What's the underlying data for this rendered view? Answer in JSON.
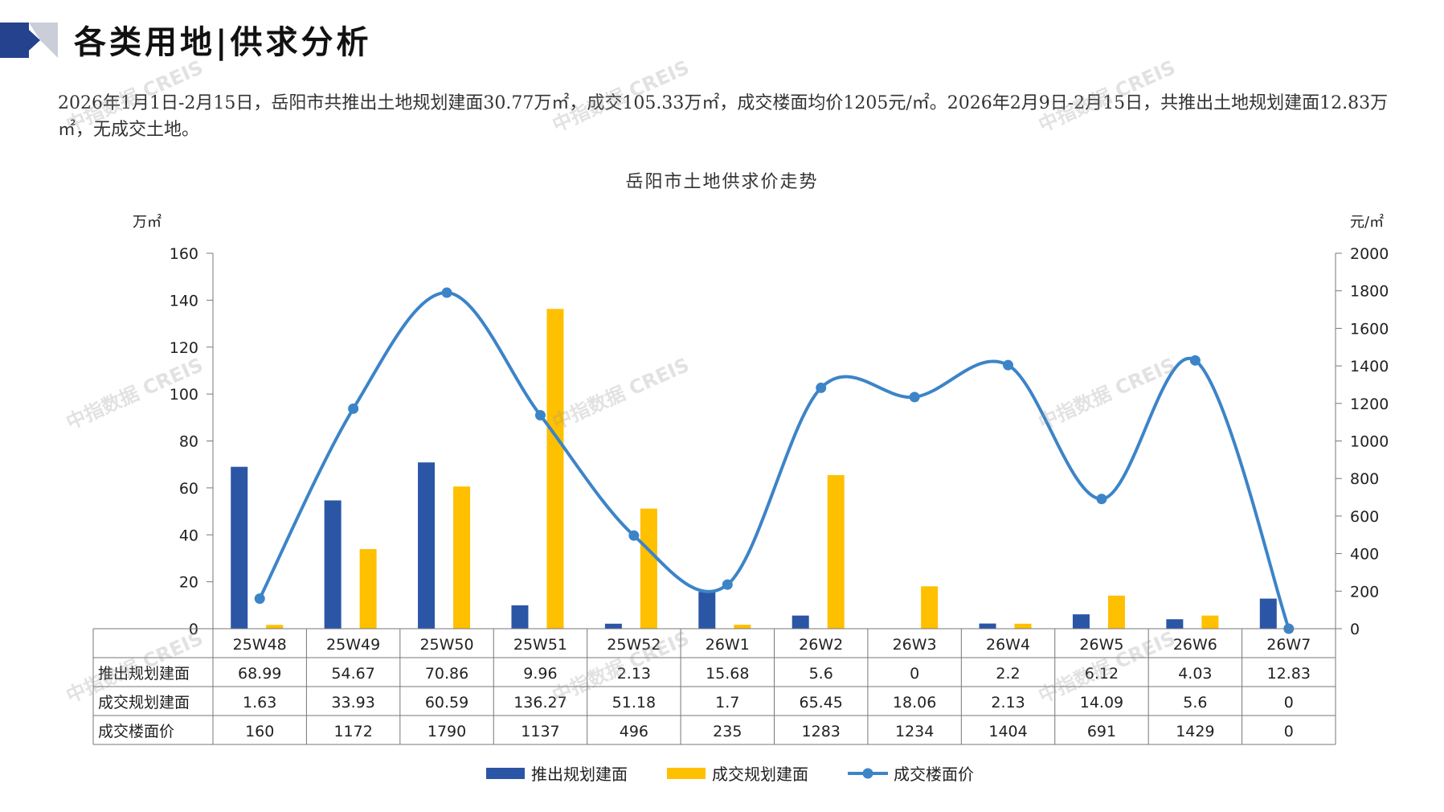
{
  "header": {
    "title": "各类用地|供求分析",
    "summary": "2026年1月1日-2月15日，岳阳市共推出土地规划建面30.77万㎡，成交105.33万㎡，成交楼面均价1205元/㎡。2026年2月9日-2月15日，共推出土地规划建面12.83万㎡，无成交土地。",
    "watermark_text": "中指数据 CREIS"
  },
  "colors": {
    "supply": "#2b56a6",
    "deal": "#ffc000",
    "price": "#3c84c8",
    "corner_dark": "#25428f",
    "corner_light": "#c9ced8"
  },
  "chart_data": {
    "type": "bar",
    "title": "岳阳市土地供求价走势",
    "categories": [
      "25W48",
      "25W49",
      "25W50",
      "25W51",
      "25W52",
      "26W1",
      "26W2",
      "26W3",
      "26W4",
      "26W5",
      "26W6",
      "26W7"
    ],
    "y_left": {
      "unit": "万㎡",
      "range": [
        0,
        160
      ],
      "ticks": [
        0,
        20,
        40,
        60,
        80,
        100,
        120,
        140,
        160
      ]
    },
    "y_right": {
      "unit": "元/㎡",
      "range": [
        0,
        2000
      ],
      "ticks": [
        0,
        200,
        400,
        600,
        800,
        1000,
        1200,
        1400,
        1600,
        1800,
        2000
      ]
    },
    "legend_position": "bottom",
    "series": [
      {
        "name": "推出规划建面",
        "type": "bar",
        "axis": "left",
        "values": [
          68.99,
          54.67,
          70.86,
          9.96,
          2.13,
          15.68,
          5.6,
          0,
          2.2,
          6.12,
          4.03,
          12.83
        ],
        "labels": [
          "68.99",
          "54.67",
          "70.86",
          "9.96",
          "2.13",
          "15.68",
          "5.6",
          "0",
          "2.2",
          "6.12",
          "4.03",
          "12.83"
        ]
      },
      {
        "name": "成交规划建面",
        "type": "bar",
        "axis": "left",
        "values": [
          1.63,
          33.93,
          60.59,
          136.27,
          51.18,
          1.7,
          65.45,
          18.06,
          2.13,
          14.09,
          5.6,
          0
        ],
        "labels": [
          "1.63",
          "33.93",
          "60.59",
          "136.27",
          "51.18",
          "1.7",
          "65.45",
          "18.06",
          "2.13",
          "14.09",
          "5.6",
          "0"
        ]
      },
      {
        "name": "成交楼面价",
        "type": "line",
        "axis": "right",
        "smooth": true,
        "values": [
          160,
          1172,
          1790,
          1137,
          496,
          235,
          1283,
          1234,
          1404,
          691,
          1429,
          0
        ],
        "labels": [
          "160",
          "1172",
          "1790",
          "1137",
          "496",
          "235",
          "1283",
          "1234",
          "1404",
          "691",
          "1429",
          "0"
        ]
      }
    ]
  }
}
